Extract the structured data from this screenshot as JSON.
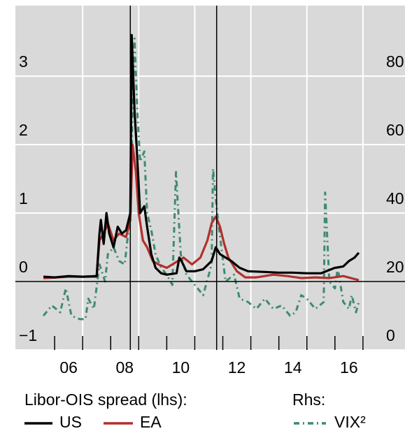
{
  "chart_data": {
    "type": "line",
    "xlim": [
      2004.6,
      2018.5
    ],
    "xticks": [
      {
        "value": 2006.5,
        "label": "06"
      },
      {
        "value": 2008.5,
        "label": "08"
      },
      {
        "value": 2010.5,
        "label": "10"
      },
      {
        "value": 2012.5,
        "label": "12"
      },
      {
        "value": 2014.5,
        "label": "14"
      },
      {
        "value": 2016.5,
        "label": "16"
      }
    ],
    "x_tick_marks": [
      2006,
      2007,
      2008,
      2009,
      2010,
      2011,
      2012,
      2013,
      2014,
      2015,
      2016,
      2017
    ],
    "xgrid": [
      2007,
      2009,
      2011,
      2013,
      2015,
      2017
    ],
    "event_lines": [
      2008.7,
      2011.78
    ],
    "ylim": [
      -1,
      4
    ],
    "yticks": [
      {
        "value": -1,
        "label": "−1"
      },
      0,
      1,
      2,
      3
    ],
    "y2lim": [
      0,
      100
    ],
    "y2ticks": [
      0,
      20,
      40,
      60,
      80
    ],
    "grid": true,
    "legend_titles": {
      "lhs": "Libor-OIS spread (lhs):",
      "rhs": "Rhs:"
    },
    "series": [
      {
        "name": "VIX²",
        "color": "#3f8a70",
        "dash": "8 5 2 5",
        "axis": "y2",
        "x": [
          2005.6,
          2005.9,
          2006.2,
          2006.4,
          2006.6,
          2006.9,
          2007.1,
          2007.2,
          2007.4,
          2007.6,
          2007.8,
          2007.9,
          2008.1,
          2008.3,
          2008.5,
          2008.7,
          2008.78,
          2008.85,
          2008.95,
          2009.05,
          2009.2,
          2009.3,
          2009.45,
          2009.6,
          2009.8,
          2010.0,
          2010.2,
          2010.33,
          2010.5,
          2010.7,
          2010.9,
          2011.1,
          2011.3,
          2011.6,
          2011.65,
          2011.8,
          2011.95,
          2012.1,
          2012.4,
          2012.6,
          2012.9,
          2013.2,
          2013.5,
          2013.8,
          2014.1,
          2014.4,
          2014.6,
          2014.8,
          2015.0,
          2015.3,
          2015.6,
          2015.65,
          2015.8,
          2016.0,
          2016.1,
          2016.3,
          2016.5,
          2016.6,
          2016.75,
          2016.85
        ],
        "values": [
          10,
          13,
          11,
          18,
          10,
          9,
          9,
          15,
          12,
          25,
          20,
          28,
          30,
          26,
          25,
          40,
          70,
          91,
          70,
          55,
          58,
          40,
          35,
          28,
          24,
          22,
          19,
          52,
          28,
          22,
          20,
          18,
          16,
          25,
          53,
          40,
          30,
          20,
          22,
          15,
          14,
          12,
          15,
          12,
          13,
          10,
          11,
          16,
          15,
          12,
          14,
          46,
          20,
          18,
          24,
          14,
          12,
          16,
          11,
          14
        ]
      },
      {
        "name": "EA",
        "color": "#b2302d",
        "axis": "y",
        "x": [
          2005.6,
          2006.5,
          2007.5,
          2007.6,
          2007.75,
          2007.9,
          2008.1,
          2008.3,
          2008.55,
          2008.7,
          2008.78,
          2008.9,
          2009.0,
          2009.15,
          2009.3,
          2009.5,
          2009.7,
          2010.0,
          2010.4,
          2010.6,
          2010.9,
          2011.2,
          2011.45,
          2011.6,
          2011.75,
          2011.9,
          2012.05,
          2012.2,
          2012.5,
          2012.8,
          2013.2,
          2013.8,
          2014.3,
          2014.8,
          2015.3,
          2015.8,
          2016.3,
          2016.85
        ],
        "values": [
          0.05,
          0.07,
          0.07,
          0.6,
          0.7,
          0.85,
          0.6,
          0.7,
          0.65,
          0.9,
          2.0,
          1.6,
          1.0,
          0.6,
          0.5,
          0.3,
          0.25,
          0.2,
          0.3,
          0.35,
          0.25,
          0.35,
          0.6,
          0.85,
          0.95,
          0.8,
          0.55,
          0.35,
          0.15,
          0.06,
          0.06,
          0.1,
          0.08,
          0.05,
          0.06,
          0.05,
          0.08,
          0.02
        ]
      },
      {
        "name": "US",
        "color": "#000000",
        "axis": "y",
        "x": [
          2005.6,
          2006.0,
          2006.5,
          2007.0,
          2007.5,
          2007.6,
          2007.65,
          2007.75,
          2007.85,
          2007.95,
          2008.1,
          2008.25,
          2008.4,
          2008.55,
          2008.7,
          2008.75,
          2008.85,
          2008.95,
          2009.05,
          2009.2,
          2009.3,
          2009.45,
          2009.6,
          2009.8,
          2010.0,
          2010.35,
          2010.45,
          2010.55,
          2010.7,
          2011.0,
          2011.3,
          2011.6,
          2011.75,
          2011.9,
          2012.1,
          2012.3,
          2012.6,
          2012.9,
          2013.5,
          2014.0,
          2014.5,
          2015.0,
          2015.5,
          2016.0,
          2016.3,
          2016.5,
          2016.7,
          2016.85
        ],
        "values": [
          0.07,
          0.06,
          0.08,
          0.07,
          0.08,
          0.7,
          0.9,
          0.55,
          1.0,
          0.7,
          0.5,
          0.8,
          0.7,
          0.75,
          1.0,
          3.6,
          2.5,
          1.8,
          1.0,
          1.1,
          0.8,
          0.4,
          0.2,
          0.12,
          0.1,
          0.12,
          0.35,
          0.28,
          0.15,
          0.15,
          0.18,
          0.3,
          0.5,
          0.4,
          0.35,
          0.3,
          0.2,
          0.15,
          0.14,
          0.13,
          0.13,
          0.12,
          0.12,
          0.2,
          0.22,
          0.3,
          0.35,
          0.42
        ]
      }
    ]
  }
}
